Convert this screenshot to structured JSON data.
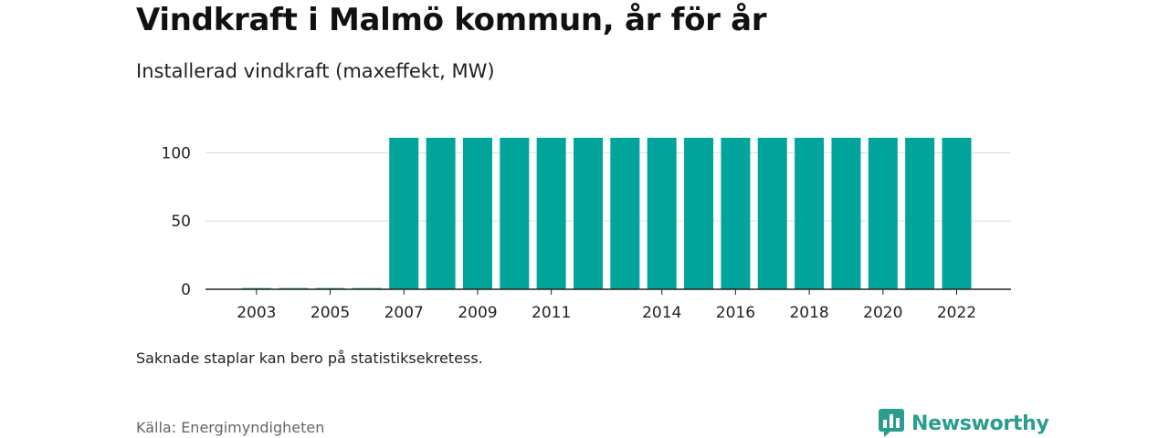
{
  "title": "Vindkraft i Malmö kommun, år för år",
  "subtitle": "Installerad vindkraft (maxeffekt, MW)",
  "note": "Saknade staplar kan bero på statistiksekretess.",
  "source": "Källa: Energimyndigheten",
  "logo": {
    "text": "Newsworthy",
    "icon": "bar-chart-speech-bubble-icon"
  },
  "colors": {
    "bar": "#00a49a",
    "logo": "#2a9d8f",
    "grid": "#dddddd",
    "axis": "#222222"
  },
  "chart_data": {
    "type": "bar",
    "categories": [
      "2002",
      "2003",
      "2004",
      "2005",
      "2006",
      "2007",
      "2008",
      "2009",
      "2010",
      "2011",
      "2012",
      "2013",
      "2014",
      "2015",
      "2016",
      "2017",
      "2018",
      "2019",
      "2020",
      "2021",
      "2022"
    ],
    "values": [
      null,
      0.9,
      0.9,
      0.9,
      0.9,
      111,
      111,
      111,
      111,
      111,
      111,
      111,
      111,
      111,
      111,
      111,
      111,
      111,
      111,
      111,
      111
    ],
    "xtick_labels": [
      "2003",
      "2005",
      "2007",
      "2009",
      "2011",
      "2014",
      "2016",
      "2018",
      "2020",
      "2022"
    ],
    "yticks": [
      0,
      50,
      100
    ],
    "ylim": [
      0,
      111
    ],
    "grid": true
  }
}
